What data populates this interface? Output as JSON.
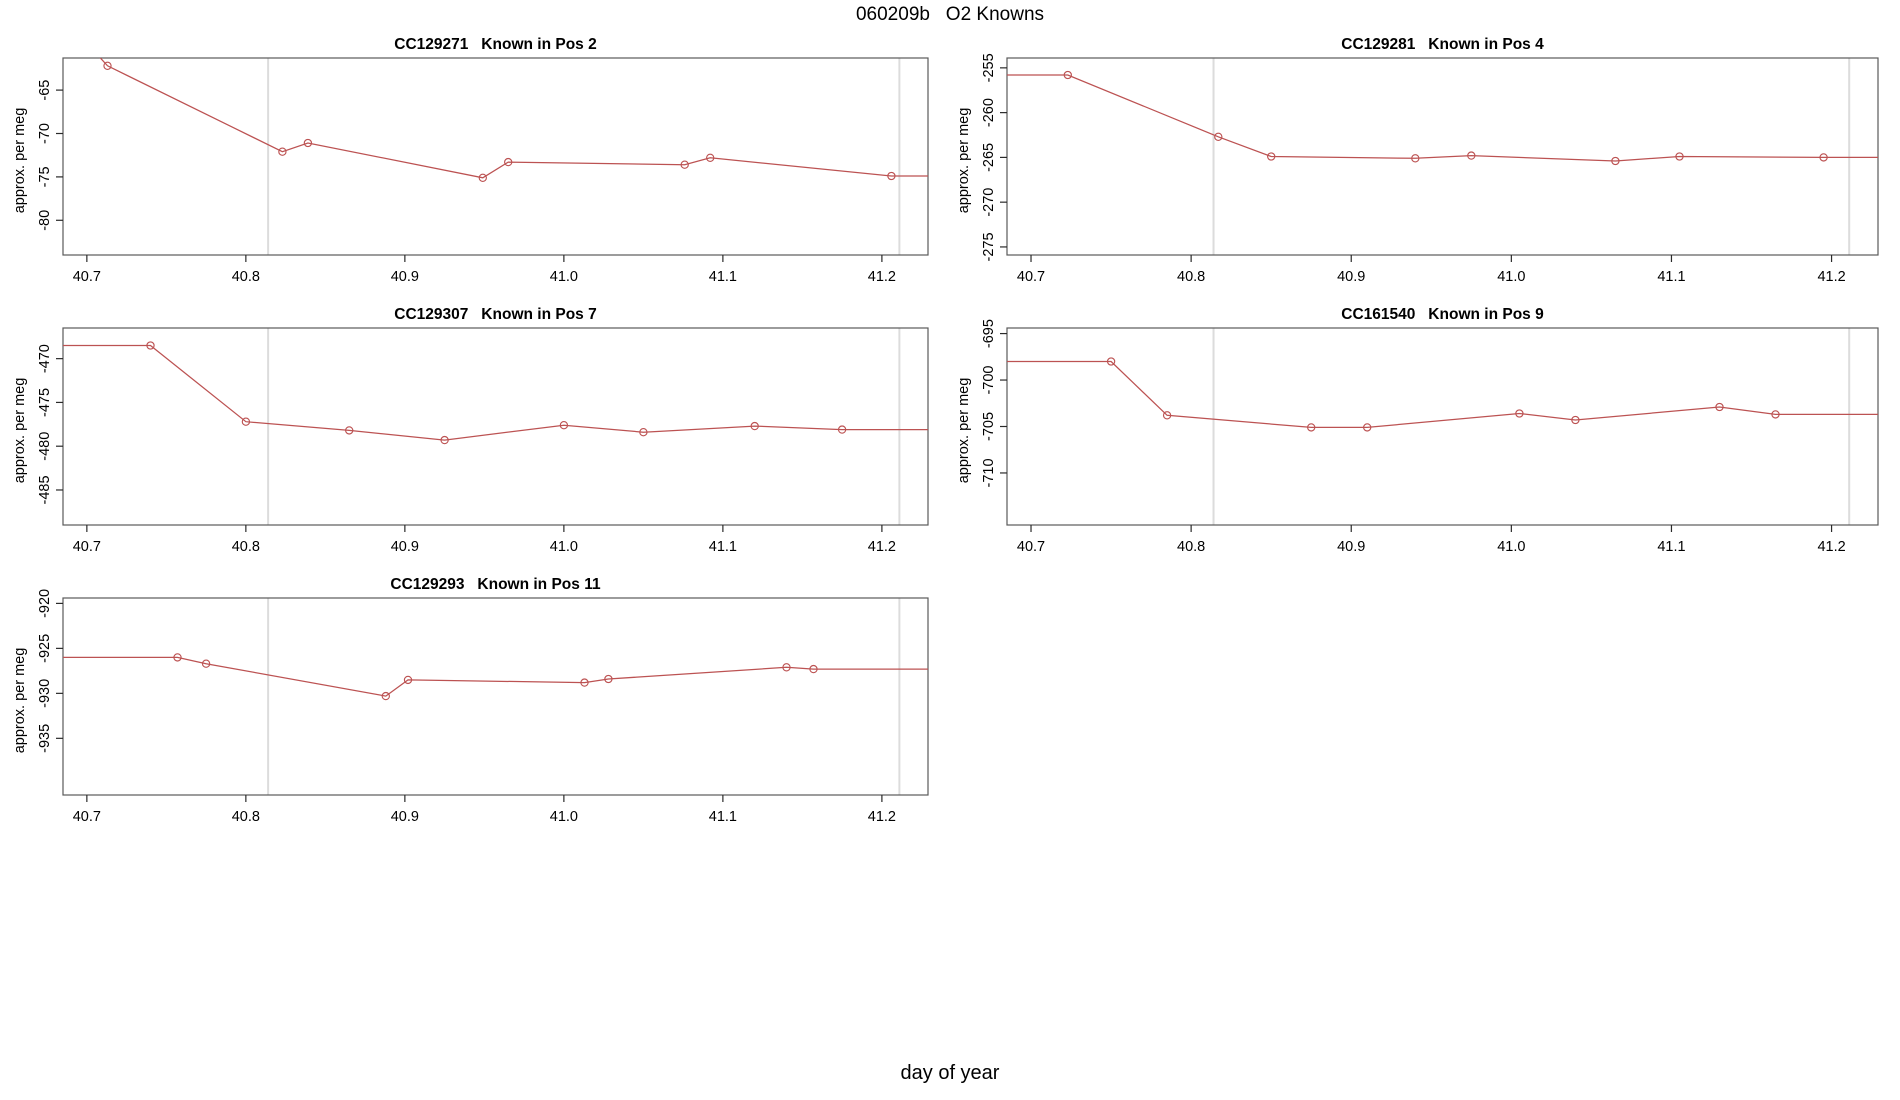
{
  "figure": {
    "title": "060209b   O2 Knowns",
    "xlabel": "day of year"
  },
  "style": {
    "line_color": "#bc5252",
    "marker_color": "#bc5252",
    "vline_color": "#dcdcdc",
    "box_color": "#595959",
    "tick_color": "#2a2a2a",
    "text_color": "#000000",
    "background": "#ffffff"
  },
  "chart_data": [
    {
      "type": "line",
      "title": "CC129271   Known in Pos 2",
      "ylabel": "approx. per meg",
      "grid": {
        "row": 0,
        "col": 0
      },
      "xlim": [
        40.685,
        41.229
      ],
      "ylim": [
        -84.0,
        -61.3
      ],
      "xticks": [
        "40.7",
        "40.8",
        "40.9",
        "41.0",
        "41.1",
        "41.2"
      ],
      "yticks": [
        "-65",
        "-70",
        "-75",
        "-80"
      ],
      "vlines": [
        40.814,
        41.211
      ],
      "line": [
        [
          40.7,
          -59.6
        ],
        [
          40.713,
          -62.2
        ],
        [
          40.823,
          -72.1
        ],
        [
          40.839,
          -71.1
        ],
        [
          40.949,
          -75.1
        ],
        [
          40.965,
          -73.3
        ],
        [
          41.076,
          -73.6
        ],
        [
          41.092,
          -72.8
        ],
        [
          41.206,
          -74.9
        ],
        [
          41.229,
          -74.9
        ]
      ],
      "markers": [
        [
          40.713,
          -62.2
        ],
        [
          40.823,
          -72.1
        ],
        [
          40.839,
          -71.1
        ],
        [
          40.949,
          -75.1
        ],
        [
          40.965,
          -73.3
        ],
        [
          41.076,
          -73.6
        ],
        [
          41.092,
          -72.8
        ],
        [
          41.206,
          -74.9
        ]
      ]
    },
    {
      "type": "line",
      "title": "CC129281   Known in Pos 4",
      "ylabel": "approx. per meg",
      "grid": {
        "row": 0,
        "col": 1
      },
      "xlim": [
        40.685,
        41.229
      ],
      "ylim": [
        -275.9,
        -253.9
      ],
      "xticks": [
        "40.7",
        "40.8",
        "40.9",
        "41.0",
        "41.1",
        "41.2"
      ],
      "yticks": [
        "-255",
        "-260",
        "-265",
        "-270",
        "-275"
      ],
      "vlines": [
        40.814,
        41.211
      ],
      "line": [
        [
          40.685,
          -255.8
        ],
        [
          40.723,
          -255.8
        ],
        [
          40.817,
          -262.7
        ],
        [
          40.85,
          -264.9
        ],
        [
          40.94,
          -265.1
        ],
        [
          40.975,
          -264.8
        ],
        [
          41.065,
          -265.4
        ],
        [
          41.105,
          -264.9
        ],
        [
          41.195,
          -265.0
        ],
        [
          41.229,
          -265.0
        ]
      ],
      "markers": [
        [
          40.723,
          -255.8
        ],
        [
          40.817,
          -262.7
        ],
        [
          40.85,
          -264.9
        ],
        [
          40.94,
          -265.1
        ],
        [
          40.975,
          -264.8
        ],
        [
          41.065,
          -265.4
        ],
        [
          41.105,
          -264.9
        ],
        [
          41.195,
          -265.0
        ]
      ]
    },
    {
      "type": "line",
      "title": "CC129307   Known in Pos 7",
      "ylabel": "approx. per meg",
      "grid": {
        "row": 1,
        "col": 0
      },
      "xlim": [
        40.685,
        41.229
      ],
      "ylim": [
        -489.0,
        -466.5
      ],
      "xticks": [
        "40.7",
        "40.8",
        "40.9",
        "41.0",
        "41.1",
        "41.2"
      ],
      "yticks": [
        "-470",
        "-475",
        "-480",
        "-485"
      ],
      "vlines": [
        40.814,
        41.211
      ],
      "line": [
        [
          40.685,
          -468.5
        ],
        [
          40.74,
          -468.5
        ],
        [
          40.8,
          -477.2
        ],
        [
          40.865,
          -478.2
        ],
        [
          40.925,
          -479.3
        ],
        [
          41.0,
          -477.6
        ],
        [
          41.05,
          -478.4
        ],
        [
          41.12,
          -477.7
        ],
        [
          41.175,
          -478.1
        ],
        [
          41.229,
          -478.1
        ]
      ],
      "markers": [
        [
          40.74,
          -468.5
        ],
        [
          40.8,
          -477.2
        ],
        [
          40.865,
          -478.2
        ],
        [
          40.925,
          -479.3
        ],
        [
          41.0,
          -477.6
        ],
        [
          41.05,
          -478.4
        ],
        [
          41.12,
          -477.7
        ],
        [
          41.175,
          -478.1
        ]
      ]
    },
    {
      "type": "line",
      "title": "CC161540   Known in Pos 9",
      "ylabel": "approx. per meg",
      "grid": {
        "row": 1,
        "col": 1
      },
      "xlim": [
        40.685,
        41.229
      ],
      "ylim": [
        -715.6,
        -694.4
      ],
      "xticks": [
        "40.7",
        "40.8",
        "40.9",
        "41.0",
        "41.1",
        "41.2"
      ],
      "yticks": [
        "-695",
        "-700",
        "-705",
        "-710"
      ],
      "vlines": [
        40.814,
        41.211
      ],
      "line": [
        [
          40.685,
          -698.0
        ],
        [
          40.75,
          -698.0
        ],
        [
          40.785,
          -703.8
        ],
        [
          40.875,
          -705.1
        ],
        [
          40.91,
          -705.1
        ],
        [
          41.005,
          -703.6
        ],
        [
          41.04,
          -704.3
        ],
        [
          41.13,
          -702.9
        ],
        [
          41.165,
          -703.7
        ],
        [
          41.229,
          -703.7
        ]
      ],
      "markers": [
        [
          40.75,
          -698.0
        ],
        [
          40.785,
          -703.8
        ],
        [
          40.875,
          -705.1
        ],
        [
          40.91,
          -705.1
        ],
        [
          41.005,
          -703.6
        ],
        [
          41.04,
          -704.3
        ],
        [
          41.13,
          -702.9
        ],
        [
          41.165,
          -703.7
        ]
      ]
    },
    {
      "type": "line",
      "title": "CC129293   Known in Pos 11",
      "ylabel": "approx. per meg",
      "grid": {
        "row": 2,
        "col": 0
      },
      "xlim": [
        40.685,
        41.229
      ],
      "ylim": [
        -941.3,
        -919.4
      ],
      "xticks": [
        "40.7",
        "40.8",
        "40.9",
        "41.0",
        "41.1",
        "41.2"
      ],
      "yticks": [
        "-920",
        "-925",
        "-930",
        "-935"
      ],
      "vlines": [
        40.814,
        41.211
      ],
      "line": [
        [
          40.685,
          -926.0
        ],
        [
          40.757,
          -926.0
        ],
        [
          40.775,
          -926.7
        ],
        [
          40.888,
          -930.3
        ],
        [
          40.902,
          -928.5
        ],
        [
          41.013,
          -928.8
        ],
        [
          41.028,
          -928.4
        ],
        [
          41.14,
          -927.1
        ],
        [
          41.157,
          -927.3
        ],
        [
          41.229,
          -927.3
        ]
      ],
      "markers": [
        [
          40.757,
          -926.0
        ],
        [
          40.775,
          -926.7
        ],
        [
          40.888,
          -930.3
        ],
        [
          40.902,
          -928.5
        ],
        [
          41.013,
          -928.8
        ],
        [
          41.028,
          -928.4
        ],
        [
          41.14,
          -927.1
        ],
        [
          41.157,
          -927.3
        ]
      ]
    }
  ]
}
